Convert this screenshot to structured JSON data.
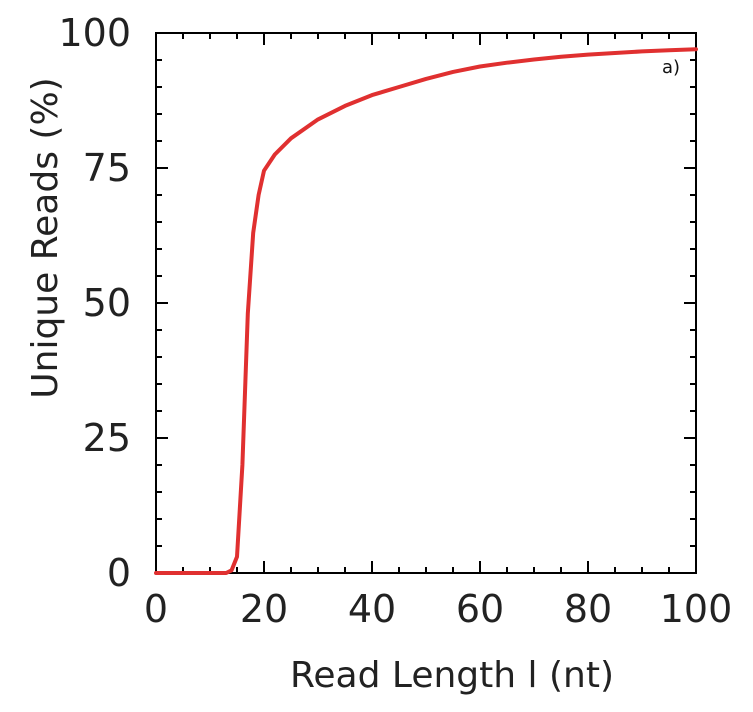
{
  "chart_data": {
    "type": "line",
    "title": "",
    "xlabel": "Read Length l (nt)",
    "ylabel": "Unique Reads (%)",
    "panel_label": "a)",
    "xlim": [
      0,
      100
    ],
    "ylim": [
      0,
      100
    ],
    "xticks": [
      0,
      20,
      40,
      60,
      80,
      100
    ],
    "xtick_labels": [
      "0",
      "20",
      "40",
      "60",
      "80",
      "100"
    ],
    "yticks": [
      0,
      25,
      50,
      75,
      100
    ],
    "ytick_labels": [
      "0",
      "25",
      "50",
      "75",
      "100"
    ],
    "grid": false,
    "series": [
      {
        "color": "#e03030",
        "x": [
          0,
          10,
          13,
          14,
          15,
          16,
          17,
          18,
          19,
          20,
          22,
          25,
          30,
          35,
          40,
          45,
          50,
          55,
          60,
          65,
          70,
          75,
          80,
          85,
          90,
          95,
          100
        ],
        "y": [
          0,
          0,
          0,
          0.5,
          3,
          20,
          48,
          63,
          70,
          74.5,
          77.5,
          80.5,
          84,
          86.5,
          88.5,
          90,
          91.5,
          92.8,
          93.8,
          94.5,
          95.1,
          95.6,
          96.0,
          96.3,
          96.6,
          96.8,
          97.0
        ]
      }
    ]
  }
}
